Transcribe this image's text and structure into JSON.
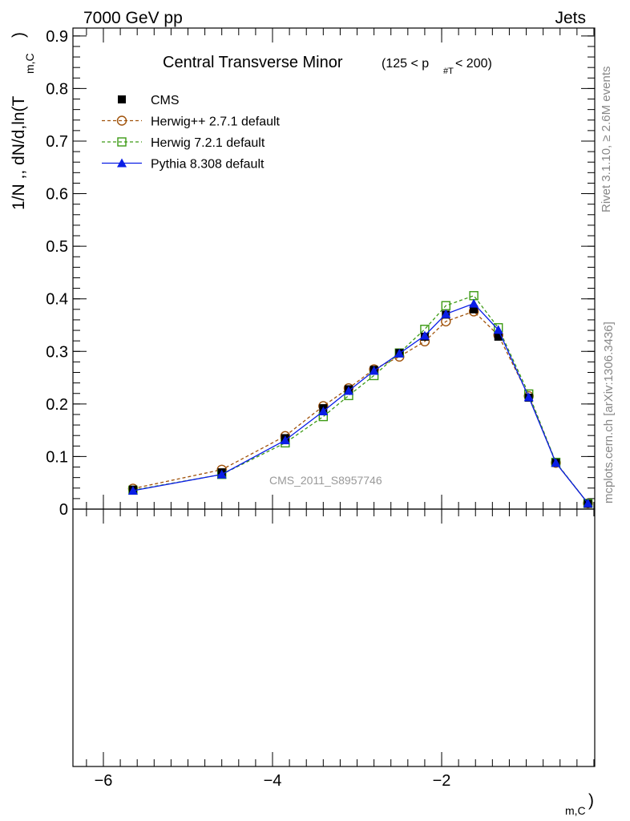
{
  "header": {
    "left": "7000 GeV pp",
    "right": "Jets"
  },
  "side_labels": {
    "rivet": "Rivet 3.1.10, ≥ 2.6M events",
    "mcplots": "mcplots.cern.ch [arXiv:1306.3436]"
  },
  "watermark": "CMS_2011_S8957746",
  "chart_data": {
    "type": "line",
    "title": "Central Transverse Minor",
    "title_cut_pre": "(125 < p",
    "title_cut_sub": "#T",
    "title_cut_post": " < 200)",
    "ylabel_main": "1/N ,, dN/d,ln(T",
    "ylabel_sub": "m,C",
    "ylabel_close": ")",
    "xlabel_sub": "m,C",
    "xlabel_close": ")",
    "xlim": [
      -6.36,
      -0.19
    ],
    "ylim": [
      0,
      0.915
    ],
    "xticks": [
      -6,
      -4,
      -2
    ],
    "xtick_labels": [
      "−6",
      "−4",
      "−2"
    ],
    "yticks": [
      0,
      0.1,
      0.2,
      0.3,
      0.4,
      0.5,
      0.6,
      0.7,
      0.8,
      0.9
    ],
    "ytick_labels": [
      "0",
      "0.1",
      "0.2",
      "0.3",
      "0.4",
      "0.5",
      "0.6",
      "0.7",
      "0.8",
      "0.9"
    ],
    "legend_position": "top-left",
    "series": [
      {
        "name": "CMS",
        "color": "#000000",
        "marker": "filled-square",
        "line": "none",
        "x": [
          -5.65,
          -4.6,
          -3.85,
          -3.4,
          -3.1,
          -2.8,
          -2.5,
          -2.2,
          -1.95,
          -1.62,
          -1.33,
          -0.97,
          -0.65,
          -0.27
        ],
        "y": [
          0.037,
          0.07,
          0.135,
          0.192,
          0.228,
          0.265,
          0.297,
          0.328,
          0.37,
          0.38,
          0.328,
          0.212,
          0.088,
          0.01
        ]
      },
      {
        "name": "Herwig++ 2.7.1 default",
        "color": "#a0520a",
        "marker": "open-circle",
        "line": "dashed",
        "x": [
          -5.65,
          -4.6,
          -3.85,
          -3.4,
          -3.1,
          -2.8,
          -2.5,
          -2.2,
          -1.95,
          -1.62,
          -1.33,
          -0.97,
          -0.65,
          -0.27
        ],
        "y": [
          0.039,
          0.075,
          0.139,
          0.196,
          0.23,
          0.266,
          0.29,
          0.319,
          0.357,
          0.376,
          0.331,
          0.215,
          0.088,
          0.011
        ]
      },
      {
        "name": "Herwig 7.2.1 default",
        "color": "#3c9a14",
        "marker": "open-square",
        "line": "dashed",
        "x": [
          -5.65,
          -4.6,
          -3.85,
          -3.4,
          -3.1,
          -2.8,
          -2.5,
          -2.2,
          -1.95,
          -1.62,
          -1.33,
          -0.97,
          -0.65,
          -0.27
        ],
        "y": [
          0.036,
          0.066,
          0.126,
          0.176,
          0.216,
          0.254,
          0.297,
          0.342,
          0.387,
          0.406,
          0.345,
          0.219,
          0.089,
          0.011
        ]
      },
      {
        "name": "Pythia 8.308 default",
        "color": "#0a1ee6",
        "marker": "filled-triangle",
        "line": "solid",
        "x": [
          -5.65,
          -4.6,
          -3.85,
          -3.4,
          -3.1,
          -2.8,
          -2.5,
          -2.2,
          -1.95,
          -1.62,
          -1.33,
          -0.97,
          -0.65,
          -0.27
        ],
        "y": [
          0.035,
          0.066,
          0.131,
          0.186,
          0.225,
          0.263,
          0.296,
          0.33,
          0.371,
          0.391,
          0.341,
          0.213,
          0.088,
          0.011
        ]
      }
    ]
  }
}
